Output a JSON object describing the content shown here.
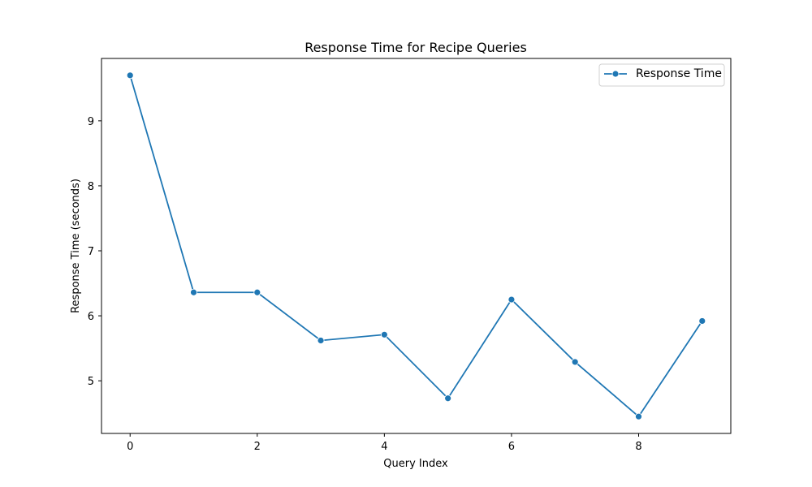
{
  "chart_data": {
    "type": "line",
    "title": "Response Time for Recipe Queries",
    "xlabel": "Query Index",
    "ylabel": "Response Time (seconds)",
    "x": [
      0,
      1,
      2,
      3,
      4,
      5,
      6,
      7,
      8,
      9
    ],
    "series": [
      {
        "name": "Response Time",
        "values": [
          9.7,
          6.36,
          6.36,
          5.62,
          5.71,
          4.73,
          6.25,
          5.29,
          4.45,
          5.92
        ],
        "color": "#1f77b4"
      }
    ],
    "xlim": [
      -0.45,
      9.45
    ],
    "ylim": [
      4.19,
      9.96
    ],
    "xticks": [
      0,
      2,
      4,
      6,
      8
    ],
    "yticks": [
      5,
      6,
      7,
      8,
      9
    ],
    "grid": false,
    "legend_position": "top-right"
  }
}
